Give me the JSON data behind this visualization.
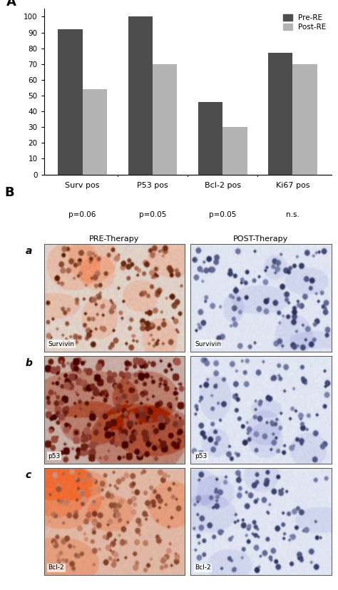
{
  "panel_A_label": "A",
  "panel_B_label": "B",
  "categories": [
    "Surv pos",
    "P53 pos",
    "Bcl-2 pos",
    "Ki67 pos"
  ],
  "p_values": [
    "p=0.06",
    "p=0.05",
    "p=0.05",
    "n.s."
  ],
  "pre_values": [
    92,
    100,
    46,
    77
  ],
  "post_values": [
    54,
    70,
    30,
    70
  ],
  "pre_color": "#4d4d4d",
  "post_color": "#b3b3b3",
  "legend_pre": "Pre-RE",
  "legend_post": "Post-RE",
  "ylim": [
    0,
    105
  ],
  "yticks": [
    0,
    10,
    20,
    30,
    40,
    50,
    60,
    70,
    80,
    90,
    100
  ],
  "bar_width": 0.35,
  "bg_color": "#ffffff",
  "row_labels": [
    "a",
    "b",
    "c"
  ],
  "col_labels": [
    "PRE-Therapy",
    "POST-Therapy"
  ],
  "image_labels_pre": [
    "Survivin",
    "p53",
    "Bcl-2"
  ],
  "image_labels_post": [
    "Survivin",
    "p53",
    "Bcl-2"
  ],
  "img_bg_colors_pre": [
    "#d4c0b0",
    "#c09080",
    "#d4b0a0"
  ],
  "img_bg_colors_post": [
    "#a0b0c8",
    "#9aacbe",
    "#9aaec0"
  ]
}
